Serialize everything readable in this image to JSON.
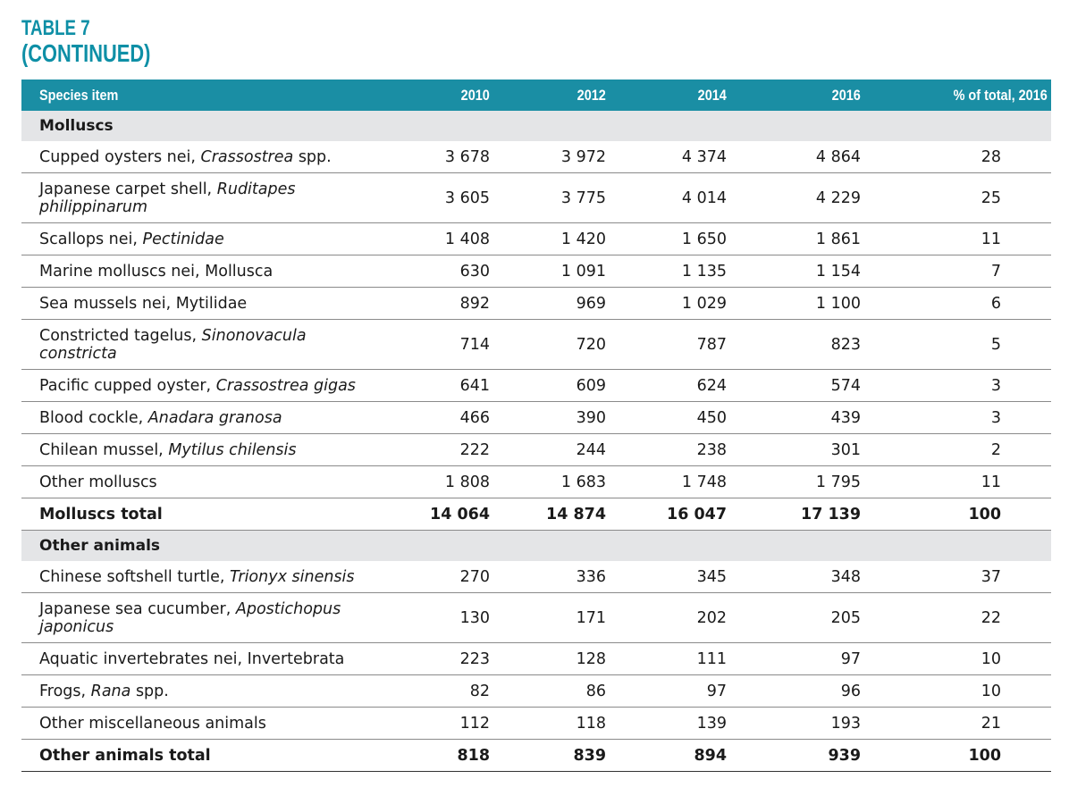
{
  "title": {
    "line1": "TABLE 7",
    "line2": "(CONTINUED)"
  },
  "columns": [
    "Species item",
    "2010",
    "2012",
    "2014",
    "2016",
    "% of total, 2016"
  ],
  "sections": [
    {
      "heading": "Molluscs",
      "rows": [
        {
          "common": "Cupped oysters nei, ",
          "scientific": "Crassostrea",
          "suffix": " spp.",
          "values": [
            "3 678",
            "3 972",
            "4 374",
            "4 864",
            "28"
          ]
        },
        {
          "common": "Japanese carpet shell, ",
          "scientific": "Ruditapes philippinarum",
          "suffix": "",
          "values": [
            "3 605",
            "3 775",
            "4 014",
            "4 229",
            "25"
          ]
        },
        {
          "common": "Scallops nei, ",
          "scientific": "Pectinidae",
          "suffix": "",
          "values": [
            "1 408",
            "1 420",
            "1 650",
            "1 861",
            "11"
          ]
        },
        {
          "common": "Marine molluscs nei, Mollusca",
          "scientific": "",
          "suffix": "",
          "values": [
            "630",
            "1 091",
            "1 135",
            "1 154",
            "7"
          ]
        },
        {
          "common": "Sea mussels nei, Mytilidae",
          "scientific": "",
          "suffix": "",
          "values": [
            "892",
            "969",
            "1 029",
            "1 100",
            "6"
          ]
        },
        {
          "common": "Constricted tagelus, ",
          "scientific": "Sinonovacula constricta",
          "suffix": "",
          "values": [
            "714",
            "720",
            "787",
            "823",
            "5"
          ]
        },
        {
          "common": "Pacific cupped oyster, ",
          "scientific": "Crassostrea gigas",
          "suffix": "",
          "values": [
            "641",
            "609",
            "624",
            "574",
            "3"
          ]
        },
        {
          "common": "Blood cockle, ",
          "scientific": "Anadara granosa",
          "suffix": "",
          "values": [
            "466",
            "390",
            "450",
            "439",
            "3"
          ]
        },
        {
          "common": "Chilean mussel, ",
          "scientific": "Mytilus chilensis",
          "suffix": "",
          "values": [
            "222",
            "244",
            "238",
            "301",
            "2"
          ]
        },
        {
          "common": "Other molluscs",
          "scientific": "",
          "suffix": "",
          "values": [
            "1 808",
            "1 683",
            "1 748",
            "1 795",
            "11"
          ]
        }
      ],
      "total": {
        "label": "Molluscs total",
        "values": [
          "14 064",
          "14 874",
          "16 047",
          "17 139",
          "100"
        ]
      }
    },
    {
      "heading": "Other animals",
      "rows": [
        {
          "common": "Chinese softshell turtle, ",
          "scientific": "Trionyx sinensis",
          "suffix": "",
          "values": [
            "270",
            "336",
            "345",
            "348",
            "37"
          ]
        },
        {
          "common": "Japanese sea cucumber, ",
          "scientific": "Apostichopus japonicus",
          "suffix": "",
          "values": [
            "130",
            "171",
            "202",
            "205",
            "22"
          ]
        },
        {
          "common": "Aquatic invertebrates nei, Invertebrata",
          "scientific": "",
          "suffix": "",
          "values": [
            "223",
            "128",
            "111",
            "97",
            "10"
          ]
        },
        {
          "common": "Frogs, ",
          "scientific": "Rana",
          "suffix": " spp.",
          "values": [
            "82",
            "86",
            "97",
            "96",
            "10"
          ]
        },
        {
          "common": "Other miscellaneous animals",
          "scientific": "",
          "suffix": "",
          "values": [
            "112",
            "118",
            "139",
            "193",
            "21"
          ]
        }
      ],
      "total": {
        "label": "Other animals total",
        "values": [
          "818",
          "839",
          "894",
          "939",
          "100"
        ]
      }
    }
  ]
}
